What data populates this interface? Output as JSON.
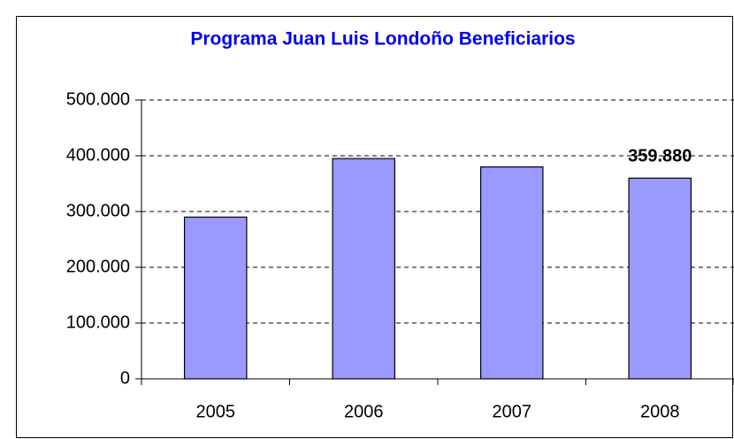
{
  "chart_data": {
    "type": "bar",
    "title": "Programa Juan Luis Londoño Beneficiarios",
    "categories": [
      "2005",
      "2006",
      "2007",
      "2008"
    ],
    "values": [
      290000,
      395000,
      380000,
      359880
    ],
    "value_labels": [
      null,
      null,
      null,
      "359.880"
    ],
    "color": "#9999ff",
    "ylim": [
      0,
      500000
    ],
    "yticks": [
      0,
      {
        "value": 100000,
        "label": "100.000"
      },
      {
        "value": 200000,
        "label": "200.000"
      },
      {
        "value": 300000,
        "label": "300.000"
      },
      {
        "value": 400000,
        "label": "400.000"
      },
      {
        "value": 500000,
        "label": "500.000"
      }
    ],
    "grid": true
  }
}
